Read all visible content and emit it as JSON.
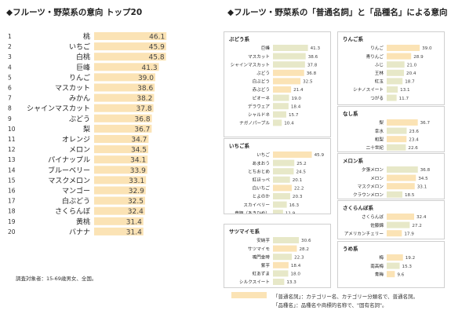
{
  "left_title": "◆フルーツ・野菜系の意向 トップ20",
  "right_title": "◆フルーツ・野菜系の「普通名詞」と「品種名」による意向",
  "footnote": "調査対象者：15-69歳男女、全国。",
  "legend": {
    "line1": "「普通名詞」：カテゴリー名、カテゴリー分類名で、普通名詞。",
    "line2": "「品種名」：品種名や商標的名称で、\"固有名詞\"。"
  },
  "colors": {
    "bar": "#fbe3b5",
    "bar_variety": "#fbe3b5",
    "bar_common": "#e7e8c8",
    "border": "#cfcfcf"
  },
  "chart_data": [
    {
      "type": "bar",
      "orientation": "horizontal",
      "title": "◆フルーツ・野菜系の意向 トップ20",
      "ranks": [
        1,
        2,
        3,
        4,
        5,
        6,
        7,
        8,
        9,
        10,
        11,
        12,
        13,
        14,
        15,
        16,
        17,
        18,
        19,
        20
      ],
      "categories": [
        "桃",
        "いちご",
        "白桃",
        "巨峰",
        "りんご",
        "マスカット",
        "みかん",
        "シャインマスカット",
        "ぶどう",
        "梨",
        "オレンジ",
        "メロン",
        "パイナップル",
        "ブルーベリー",
        "マスクメロン",
        "マンゴー",
        "白ぶどう",
        "さくらんぼ",
        "黄桃",
        "バナナ"
      ],
      "values": [
        46.1,
        45.9,
        45.8,
        41.3,
        39.0,
        38.6,
        38.2,
        37.8,
        36.8,
        36.7,
        34.7,
        34.5,
        34.1,
        33.9,
        33.1,
        32.9,
        32.5,
        32.4,
        31.4,
        31.4
      ],
      "xlim": [
        0,
        50
      ]
    },
    {
      "type": "bar",
      "orientation": "horizontal",
      "title": "ぶどう系",
      "categories": [
        "巨峰",
        "マスカット",
        "シャインマスカット",
        "ぶどう",
        "白ぶどう",
        "赤ぶどう",
        "ピオーネ",
        "デラウェア",
        "シャルドネ",
        "ナガノパープル"
      ],
      "values": [
        41.3,
        38.6,
        37.8,
        36.8,
        32.5,
        21.4,
        19.0,
        18.4,
        15.7,
        10.4
      ],
      "common_noun": [
        false,
        false,
        false,
        true,
        true,
        true,
        false,
        false,
        false,
        false
      ],
      "xlim": [
        0,
        50
      ]
    },
    {
      "type": "bar",
      "orientation": "horizontal",
      "title": "いちご系",
      "categories": [
        "いちご",
        "あまおう",
        "とちおとめ",
        "紅ほっぺ",
        "白いちご",
        "とよのか",
        "スカイベリー",
        "章姫（あきひめ）"
      ],
      "values": [
        45.9,
        25.2,
        24.5,
        20.1,
        22.2,
        20.3,
        16.3,
        11.9
      ],
      "common_noun": [
        true,
        false,
        false,
        false,
        true,
        false,
        false,
        false
      ],
      "xlim": [
        0,
        50
      ]
    },
    {
      "type": "bar",
      "orientation": "horizontal",
      "title": "サツマイモ系",
      "categories": [
        "安納芋",
        "サツマイモ",
        "鳴門金時",
        "紫芋",
        "紅あずま",
        "シルクスイート"
      ],
      "values": [
        30.6,
        28.2,
        22.3,
        18.4,
        18.0,
        13.3
      ],
      "common_noun": [
        false,
        true,
        false,
        true,
        false,
        false
      ],
      "xlim": [
        0,
        50
      ]
    },
    {
      "type": "bar",
      "orientation": "horizontal",
      "title": "りんご系",
      "categories": [
        "りんご",
        "青りんご",
        "ふじ",
        "王林",
        "紅玉",
        "シナノスイート",
        "つがる"
      ],
      "values": [
        39.0,
        28.9,
        21.0,
        20.4,
        18.7,
        13.1,
        11.7
      ],
      "common_noun": [
        true,
        true,
        false,
        false,
        false,
        false,
        false
      ],
      "xlim": [
        0,
        50
      ]
    },
    {
      "type": "bar",
      "orientation": "horizontal",
      "title": "なし系",
      "categories": [
        "梨",
        "幸水",
        "和梨",
        "二十世紀"
      ],
      "values": [
        36.7,
        23.6,
        23.4,
        22.6
      ],
      "common_noun": [
        true,
        false,
        true,
        false
      ],
      "xlim": [
        0,
        50
      ]
    },
    {
      "type": "bar",
      "orientation": "horizontal",
      "title": "メロン系",
      "categories": [
        "夕張メロン",
        "メロン",
        "マスクメロン",
        "クラウンメロン"
      ],
      "values": [
        36.8,
        34.5,
        33.1,
        18.5
      ],
      "common_noun": [
        false,
        true,
        true,
        false
      ],
      "xlim": [
        0,
        50
      ]
    },
    {
      "type": "bar",
      "orientation": "horizontal",
      "title": "さくらんぼ系",
      "categories": [
        "さくらんぼ",
        "佐藤錦",
        "アメリカンチェリー"
      ],
      "values": [
        32.4,
        27.2,
        17.9
      ],
      "common_noun": [
        true,
        false,
        true
      ],
      "xlim": [
        0,
        50
      ]
    },
    {
      "type": "bar",
      "orientation": "horizontal",
      "title": "うめ系",
      "categories": [
        "梅",
        "南高梅",
        "青梅"
      ],
      "values": [
        19.2,
        15.3,
        9.6
      ],
      "common_noun": [
        true,
        false,
        true
      ],
      "xlim": [
        0,
        50
      ]
    }
  ]
}
